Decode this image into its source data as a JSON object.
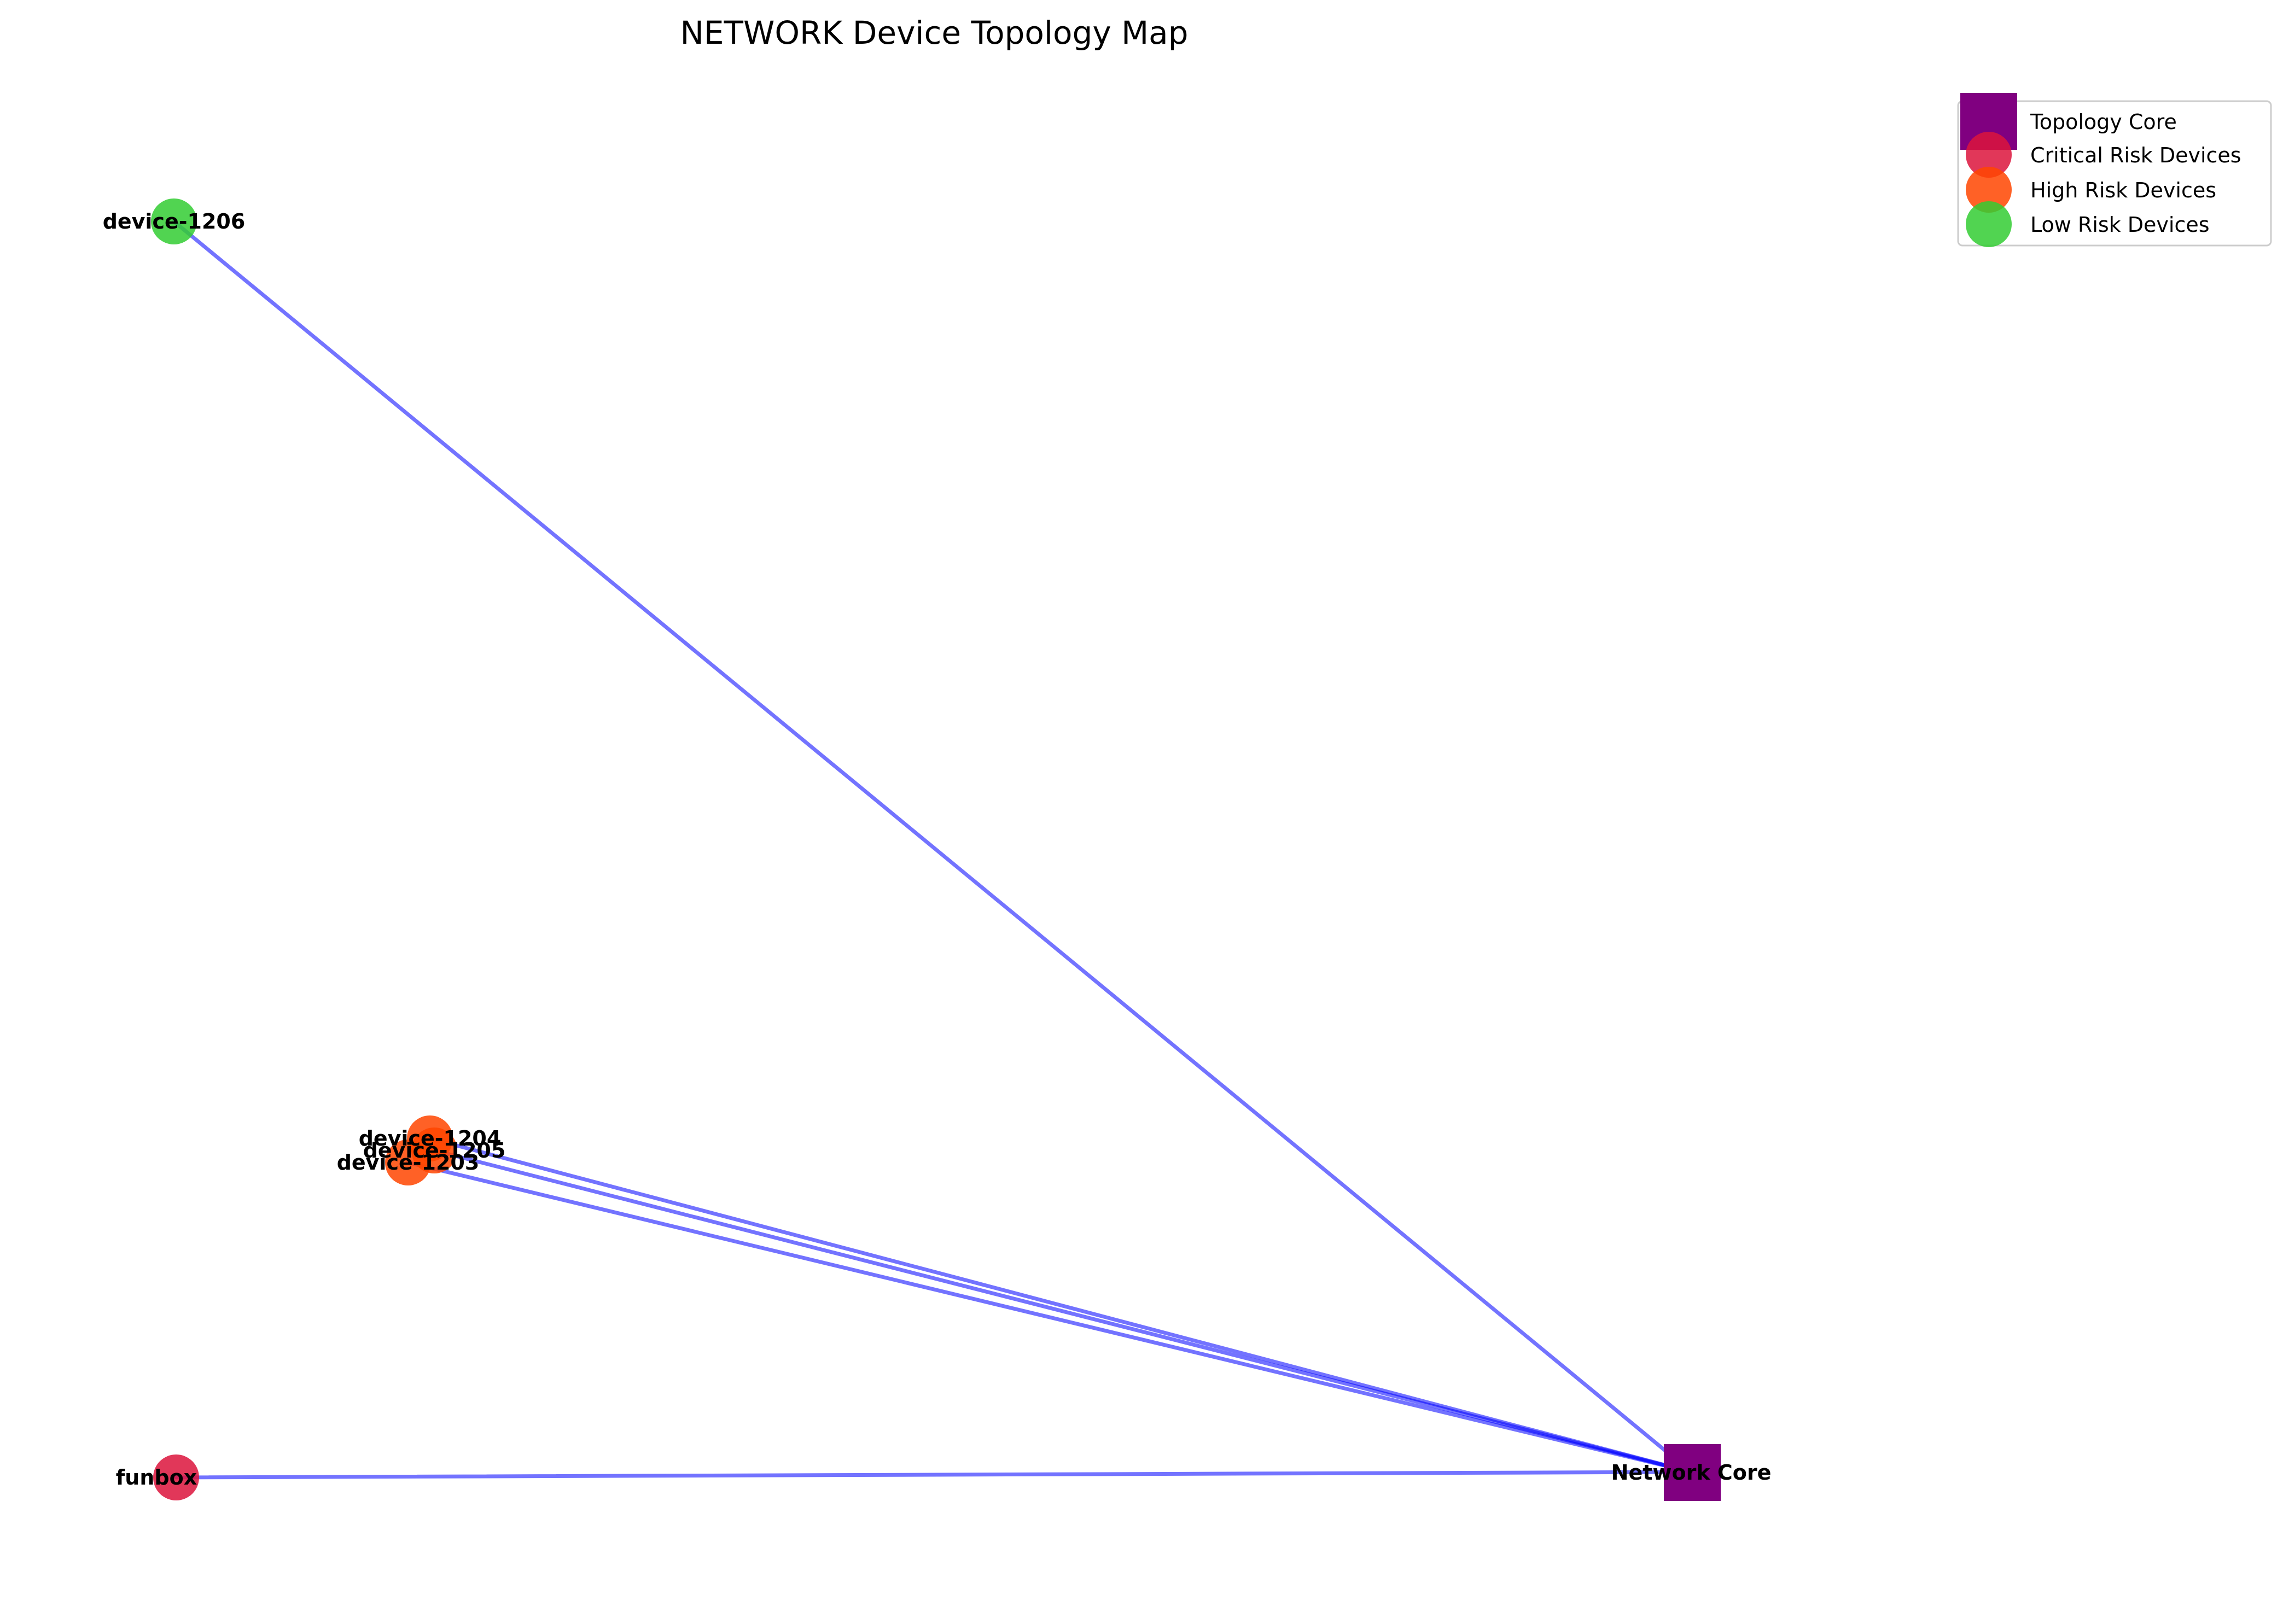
{
  "title": "NETWORK Device Topology Map",
  "colors": {
    "core": "#800080",
    "critical": "#DC143C",
    "high": "#FF4500",
    "low": "#32CD32",
    "edge": "#0000FF"
  },
  "nodes": [
    {
      "id": "core",
      "label": "Network Core",
      "category": "core"
    },
    {
      "id": "device-1206",
      "label": "device-1206",
      "category": "low"
    },
    {
      "id": "device-1204",
      "label": "device-1204",
      "category": "high"
    },
    {
      "id": "device-1205",
      "label": "device-1205",
      "category": "high"
    },
    {
      "id": "device-1203",
      "label": "device-1203",
      "category": "high"
    },
    {
      "id": "funbox",
      "label": "funbox",
      "category": "critical"
    }
  ],
  "edges": [
    {
      "from": "device-1206",
      "to": "core"
    },
    {
      "from": "device-1204",
      "to": "core"
    },
    {
      "from": "device-1205",
      "to": "core"
    },
    {
      "from": "device-1203",
      "to": "core"
    },
    {
      "from": "funbox",
      "to": "core"
    }
  ],
  "legend": [
    {
      "label": "Topology Core",
      "category": "core",
      "shape": "square"
    },
    {
      "label": "Critical Risk Devices",
      "category": "critical",
      "shape": "circle"
    },
    {
      "label": "High Risk Devices",
      "category": "high",
      "shape": "circle"
    },
    {
      "label": "Low Risk Devices",
      "category": "low",
      "shape": "circle"
    }
  ]
}
